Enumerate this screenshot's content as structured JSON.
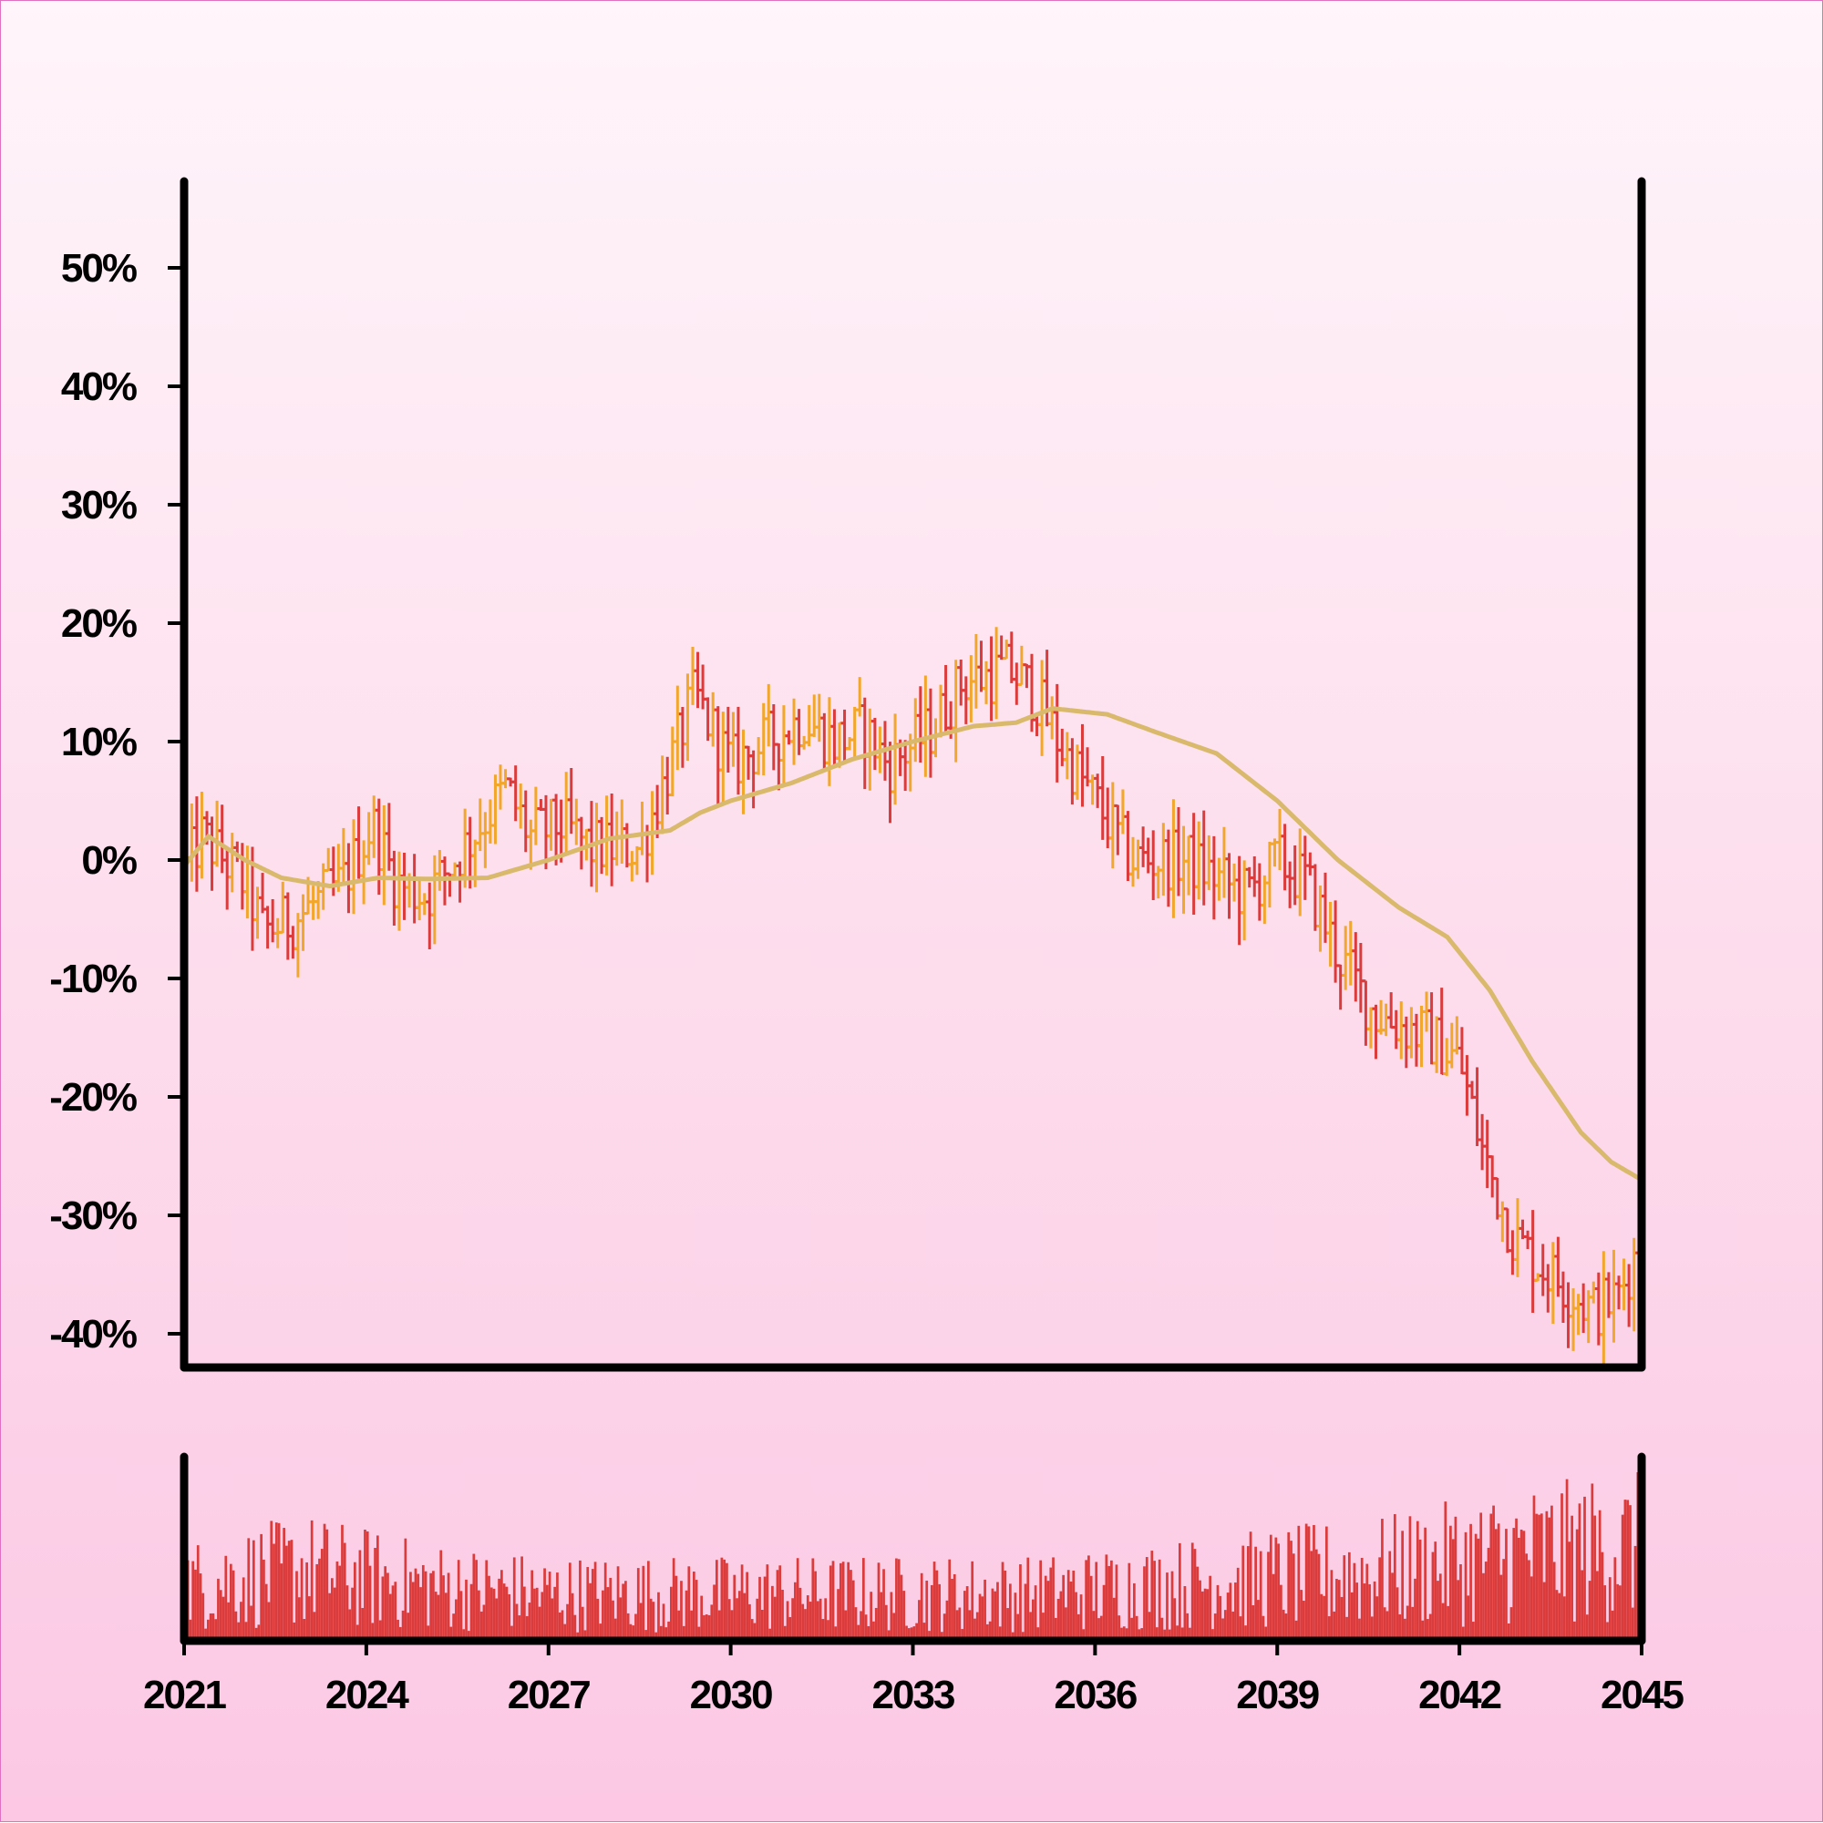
{
  "chart_data": {
    "type": "ohlc",
    "title": "",
    "xlabel": "",
    "ylabel": "",
    "y_unit": "%",
    "y_tick_labels": [
      "-40%",
      "-30%",
      "-20%",
      "-10%",
      "0%",
      "10%",
      "20%",
      "30%",
      "40%",
      "50%"
    ],
    "y_ticks": [
      -40,
      -30,
      -20,
      -10,
      0,
      10,
      20,
      30,
      40,
      50
    ],
    "ylim": [
      -42.5,
      57
    ],
    "x_tick_labels": [
      "2021",
      "2024",
      "2027",
      "2030",
      "2033",
      "2036",
      "2039",
      "2042",
      "2045"
    ],
    "x_ticks": [
      2021,
      2024,
      2027,
      2030,
      2033,
      2036,
      2039,
      2042,
      2045
    ],
    "xlim": [
      2021,
      2045
    ],
    "period": "monthly",
    "price_path_anchors": [
      {
        "x": 2021.0,
        "y": -1
      },
      {
        "x": 2021.3,
        "y": 2
      },
      {
        "x": 2022.0,
        "y": -2
      },
      {
        "x": 2022.3,
        "y": -6
      },
      {
        "x": 2022.8,
        "y": -5
      },
      {
        "x": 2023.6,
        "y": -2
      },
      {
        "x": 2024.1,
        "y": 3
      },
      {
        "x": 2024.5,
        "y": -2
      },
      {
        "x": 2025.0,
        "y": -3
      },
      {
        "x": 2025.6,
        "y": 1
      },
      {
        "x": 2026.3,
        "y": 6
      },
      {
        "x": 2026.7,
        "y": 2
      },
      {
        "x": 2027.2,
        "y": 3
      },
      {
        "x": 2027.7,
        "y": 1
      },
      {
        "x": 2028.5,
        "y": 1
      },
      {
        "x": 2029.0,
        "y": 8
      },
      {
        "x": 2029.4,
        "y": 14
      },
      {
        "x": 2030.0,
        "y": 8
      },
      {
        "x": 2030.6,
        "y": 10
      },
      {
        "x": 2031.2,
        "y": 12
      },
      {
        "x": 2031.7,
        "y": 10
      },
      {
        "x": 2032.2,
        "y": 11
      },
      {
        "x": 2032.6,
        "y": 8
      },
      {
        "x": 2033.3,
        "y": 11
      },
      {
        "x": 2033.8,
        "y": 15
      },
      {
        "x": 2034.6,
        "y": 16
      },
      {
        "x": 2035.0,
        "y": 14
      },
      {
        "x": 2035.5,
        "y": 9
      },
      {
        "x": 2036.0,
        "y": 5
      },
      {
        "x": 2036.6,
        "y": 0
      },
      {
        "x": 2037.5,
        "y": 0
      },
      {
        "x": 2038.5,
        "y": -3
      },
      {
        "x": 2039.0,
        "y": 0
      },
      {
        "x": 2039.5,
        "y": -2
      },
      {
        "x": 2040.0,
        "y": -8
      },
      {
        "x": 2040.6,
        "y": -13
      },
      {
        "x": 2041.5,
        "y": -15
      },
      {
        "x": 2042.0,
        "y": -17
      },
      {
        "x": 2042.4,
        "y": -25
      },
      {
        "x": 2042.9,
        "y": -32
      },
      {
        "x": 2043.5,
        "y": -35
      },
      {
        "x": 2044.2,
        "y": -38
      },
      {
        "x": 2044.6,
        "y": -37
      },
      {
        "x": 2045.0,
        "y": -32
      }
    ],
    "moving_average": [
      {
        "x": 2021.0,
        "y": -0.5
      },
      {
        "x": 2021.4,
        "y": 2.0
      },
      {
        "x": 2022.0,
        "y": 0
      },
      {
        "x": 2022.6,
        "y": -1.5
      },
      {
        "x": 2023.4,
        "y": -2.2
      },
      {
        "x": 2024.2,
        "y": -1.5
      },
      {
        "x": 2025.0,
        "y": -1.6
      },
      {
        "x": 2026.0,
        "y": -1.5
      },
      {
        "x": 2027.0,
        "y": 0
      },
      {
        "x": 2028.0,
        "y": 1.8
      },
      {
        "x": 2029.0,
        "y": 2.5
      },
      {
        "x": 2029.5,
        "y": 4.0
      },
      {
        "x": 2030.0,
        "y": 5.0
      },
      {
        "x": 2031.0,
        "y": 6.5
      },
      {
        "x": 2032.0,
        "y": 8.5
      },
      {
        "x": 2033.0,
        "y": 10.0
      },
      {
        "x": 2034.0,
        "y": 11.3
      },
      {
        "x": 2034.7,
        "y": 11.6
      },
      {
        "x": 2035.3,
        "y": 12.8
      },
      {
        "x": 2036.2,
        "y": 12.3
      },
      {
        "x": 2037.0,
        "y": 10.8
      },
      {
        "x": 2038.0,
        "y": 9.0
      },
      {
        "x": 2039.0,
        "y": 5.0
      },
      {
        "x": 2040.0,
        "y": 0
      },
      {
        "x": 2041.0,
        "y": -4.0
      },
      {
        "x": 2041.8,
        "y": -6.5
      },
      {
        "x": 2042.5,
        "y": -11.0
      },
      {
        "x": 2043.2,
        "y": -17.0
      },
      {
        "x": 2044.0,
        "y": -23.0
      },
      {
        "x": 2044.5,
        "y": -25.5
      },
      {
        "x": 2045.0,
        "y": -27.0
      }
    ],
    "volume_profile": [
      {
        "x": 2021,
        "v": 0.35
      },
      {
        "x": 2023,
        "v": 0.45
      },
      {
        "x": 2025,
        "v": 0.35
      },
      {
        "x": 2027,
        "v": 0.3
      },
      {
        "x": 2029,
        "v": 0.3
      },
      {
        "x": 2031,
        "v": 0.3
      },
      {
        "x": 2033,
        "v": 0.3
      },
      {
        "x": 2035,
        "v": 0.3
      },
      {
        "x": 2037,
        "v": 0.35
      },
      {
        "x": 2039,
        "v": 0.4
      },
      {
        "x": 2041,
        "v": 0.45
      },
      {
        "x": 2043,
        "v": 0.55
      },
      {
        "x": 2045,
        "v": 0.6
      }
    ],
    "colors": {
      "up": "#f2a62a",
      "down": "#dc3b3b",
      "moving_average": "#d9b96b",
      "volume": "#dc3b3b",
      "axes": "#000000"
    },
    "grid": false,
    "legend": "none"
  }
}
